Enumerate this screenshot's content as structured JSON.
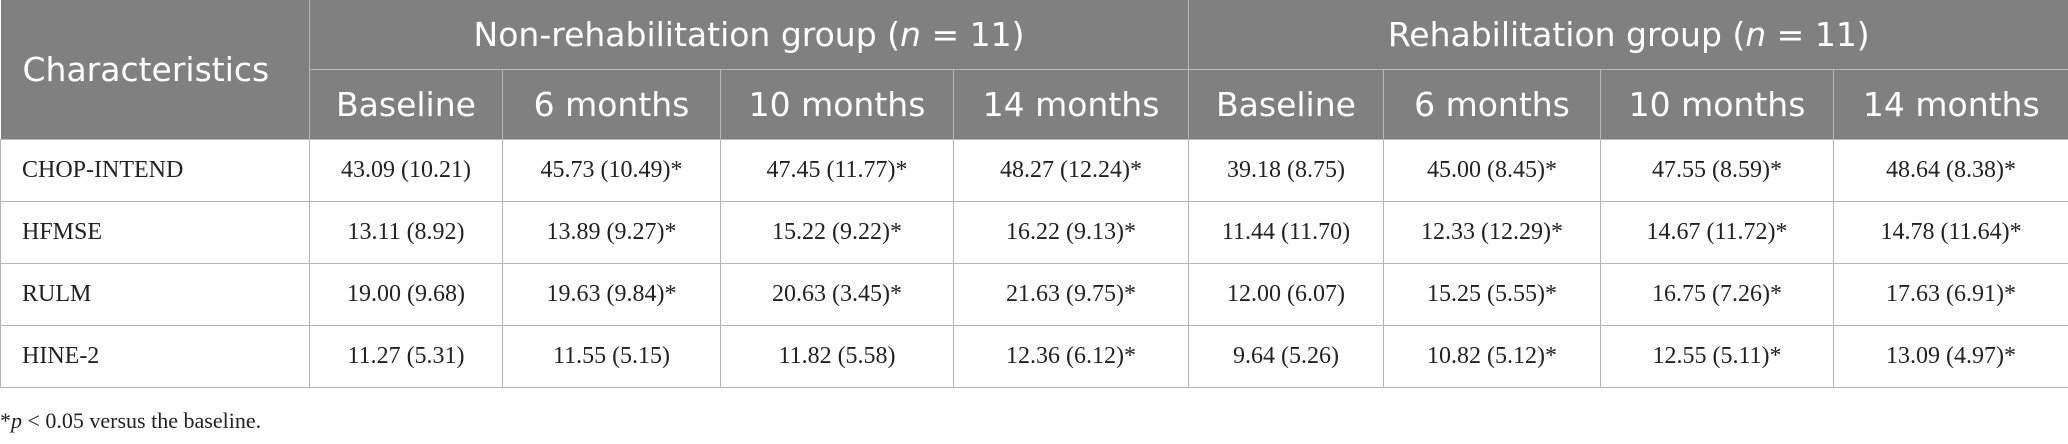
{
  "table": {
    "characteristics_header": "Characteristics",
    "groups": [
      {
        "prefix": "Non-rehabilitation group (",
        "n_symbol": "n",
        "suffix": " = 11)"
      },
      {
        "prefix": "Rehabilitation group (",
        "n_symbol": "n",
        "suffix": " = 11)"
      }
    ],
    "timepoints": [
      "Baseline",
      "6 months",
      "10 months",
      "14 months",
      "Baseline",
      "6 months",
      "10 months",
      "14 months"
    ],
    "rows": [
      {
        "label": "CHOP-INTEND",
        "cells": [
          "43.09 (10.21)",
          "45.73 (10.49)*",
          "47.45 (11.77)*",
          "48.27 (12.24)*",
          "39.18 (8.75)",
          "45.00 (8.45)*",
          "47.55 (8.59)*",
          "48.64 (8.38)*"
        ]
      },
      {
        "label": "HFMSE",
        "cells": [
          "13.11 (8.92)",
          "13.89 (9.27)*",
          "15.22 (9.22)*",
          "16.22 (9.13)*",
          "11.44 (11.70)",
          "12.33 (12.29)*",
          "14.67 (11.72)*",
          "14.78 (11.64)*"
        ]
      },
      {
        "label": "RULM",
        "cells": [
          "19.00 (9.68)",
          "19.63 (9.84)*",
          "20.63 (3.45)*",
          "21.63 (9.75)*",
          "12.00 (6.07)",
          "15.25 (5.55)*",
          "16.75 (7.26)*",
          "17.63 (6.91)*"
        ]
      },
      {
        "label": "HINE-2",
        "cells": [
          "11.27 (5.31)",
          "11.55 (5.15)",
          "11.82 (5.58)",
          "12.36 (6.12)*",
          "9.64 (5.26)",
          "10.82 (5.12)*",
          "12.55 (5.11)*",
          "13.09 (4.97)*"
        ]
      }
    ]
  },
  "footnote": {
    "star": "*",
    "p_symbol": "p",
    "text": " < 0.05 versus the baseline."
  },
  "colors": {
    "header_bg": "#808080",
    "header_text": "#ffffff",
    "grid_line": "#b5b5b5",
    "body_text": "#222222"
  }
}
